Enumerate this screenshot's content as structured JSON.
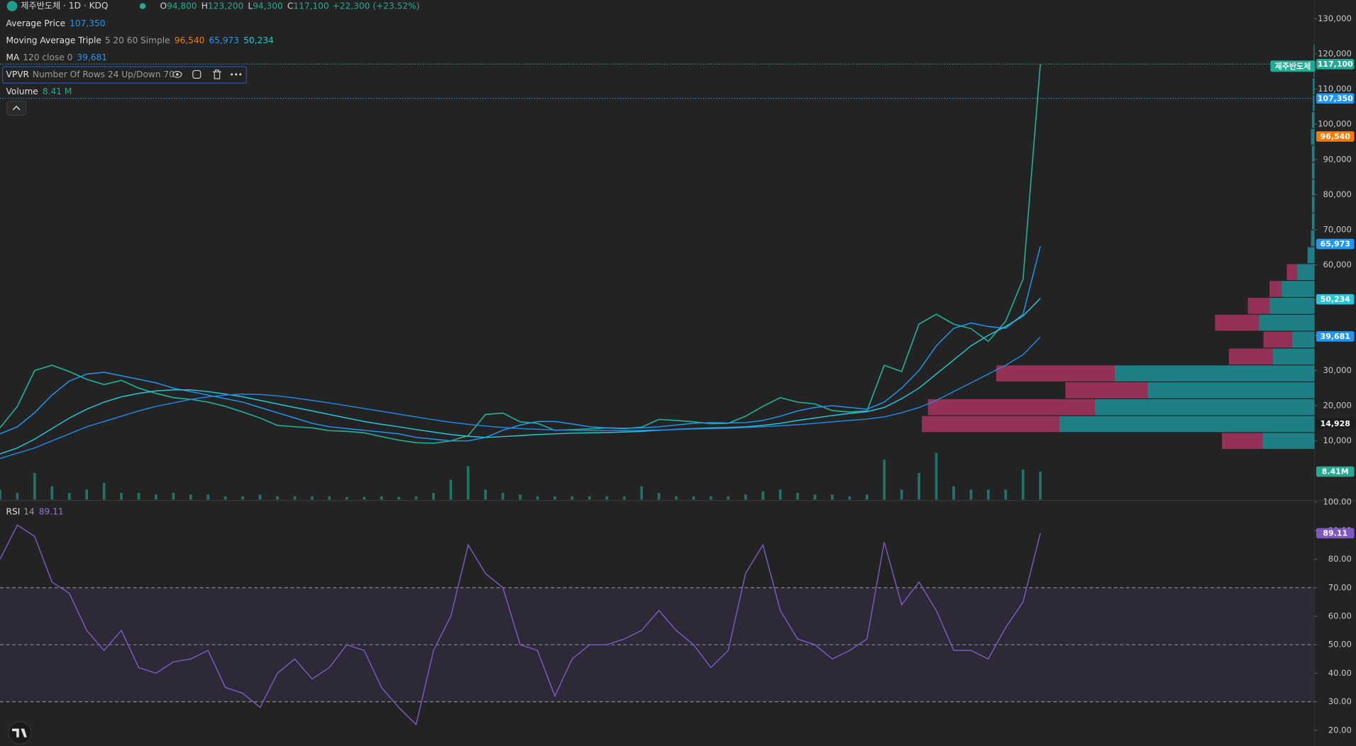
{
  "header": {
    "symbol": "제주반도체 · 1D · KDQ",
    "symbol_tag": "제주반도체",
    "ohlc": [
      {
        "key": "O",
        "value": "94,800"
      },
      {
        "key": "H",
        "value": "123,200"
      },
      {
        "key": "L",
        "value": "94,300"
      },
      {
        "key": "C",
        "value": "117,100"
      }
    ],
    "change": "+22,300 (+23.52%)"
  },
  "legend": [
    {
      "name": "Average Price",
      "values": [
        {
          "text": "107,350",
          "color": "#2196f3"
        }
      ]
    },
    {
      "name": "Moving Average Triple",
      "params": "5 20 60 Simple",
      "values": [
        {
          "text": "96,540",
          "color": "#f57c00"
        },
        {
          "text": "65,973",
          "color": "#2196f3"
        },
        {
          "text": "50,234",
          "color": "#26c6da"
        }
      ]
    },
    {
      "name": "MA",
      "params": "120 close 0",
      "values": [
        {
          "text": "39,681",
          "color": "#2196f3"
        }
      ]
    },
    {
      "name": "VPVR",
      "params": "Number Of Rows 24 Up/Down 70",
      "values": []
    },
    {
      "name": "Volume",
      "values": [
        {
          "text": "8.41 M",
          "color": "#22ab94"
        }
      ]
    }
  ],
  "rsi_legend": {
    "name": "RSI",
    "params": "14",
    "values": [
      {
        "text": "89.11",
        "color": "#9575cd"
      }
    ]
  },
  "chart_data": [
    {
      "type": "line",
      "ylim": [
        -6700,
        135300
      ],
      "yticks": [
        {
          "value": 10000,
          "label": "10,000"
        },
        {
          "value": 20000,
          "label": "20,000"
        },
        {
          "value": 30000,
          "label": "30,000"
        },
        {
          "value": 40000,
          "label": "40,000"
        },
        {
          "value": 50000,
          "label": "50,000"
        },
        {
          "value": 60000,
          "label": "60,000"
        },
        {
          "value": 70000,
          "label": "70,000"
        },
        {
          "value": 80000,
          "label": "80,000"
        },
        {
          "value": 90000,
          "label": "90,000"
        },
        {
          "value": 100000,
          "label": "100,000"
        },
        {
          "value": 110000,
          "label": "110,000"
        },
        {
          "value": 120000,
          "label": "120,000"
        },
        {
          "value": 130000,
          "label": "130,000"
        }
      ],
      "series": [
        {
          "color": "#22ab94",
          "values": [
            13700,
            19800,
            30000,
            31500,
            29700,
            27500,
            26000,
            27200,
            25000,
            23500,
            22300,
            21800,
            21000,
            19800,
            18200,
            16500,
            14400,
            14000,
            13700,
            12900,
            12700,
            12300,
            11200,
            10200,
            9500,
            9300,
            10000,
            11500,
            17500,
            17900,
            15400,
            15000,
            13000,
            13200,
            13400,
            13700,
            13500,
            13900,
            16100,
            15800,
            15400,
            14900,
            15000,
            17000,
            19800,
            22300,
            21000,
            20500,
            18600,
            18200,
            18500,
            31500,
            29700,
            43200,
            46000,
            43200,
            41900,
            38300,
            44000,
            56000,
            117100
          ]
        },
        {
          "color": "#2196f3",
          "values": [
            12000,
            14000,
            18000,
            23000,
            27000,
            29000,
            29500,
            28500,
            27500,
            26500,
            25000,
            24000,
            23000,
            22000,
            21000,
            19500,
            18000,
            16500,
            15000,
            14000,
            13500,
            13000,
            12500,
            12000,
            11000,
            10500,
            10000,
            10000,
            11000,
            13000,
            14500,
            15500,
            15500,
            14800,
            14000,
            13700,
            13600,
            13700,
            14000,
            14500,
            15000,
            15200,
            15100,
            15200,
            15800,
            17000,
            18500,
            19500,
            20000,
            19500,
            19000,
            21000,
            25000,
            30000,
            37000,
            42000,
            43500,
            42500,
            42000,
            46000,
            65300
          ]
        },
        {
          "color": "#26c6da",
          "values": [
            6300,
            8000,
            10500,
            13500,
            16500,
            19000,
            21000,
            22500,
            23500,
            24200,
            24500,
            24500,
            24000,
            23300,
            22500,
            21500,
            20500,
            19500,
            18500,
            17500,
            16500,
            15500,
            14700,
            14000,
            13200,
            12500,
            11800,
            11300,
            11000,
            11200,
            11500,
            11800,
            12000,
            12200,
            12300,
            12400,
            12500,
            12700,
            13000,
            13300,
            13500,
            13700,
            13800,
            14000,
            14400,
            15000,
            15800,
            16500,
            17200,
            17800,
            18300,
            19500,
            22000,
            25000,
            29000,
            33000,
            37000,
            40000,
            42500,
            45500,
            50500
          ]
        },
        {
          "color": "#1e88e5",
          "values": [
            5000,
            6500,
            8000,
            10000,
            12000,
            14000,
            15500,
            17000,
            18500,
            19800,
            20800,
            21800,
            22500,
            23000,
            23300,
            23200,
            22800,
            22200,
            21500,
            20800,
            20000,
            19200,
            18400,
            17600,
            16800,
            16000,
            15300,
            14700,
            14200,
            13800,
            13500,
            13300,
            13100,
            13000,
            12900,
            12900,
            12900,
            13000,
            13100,
            13200,
            13400,
            13500,
            13600,
            13800,
            14000,
            14300,
            14600,
            15000,
            15400,
            15800,
            16200,
            16800,
            18000,
            19500,
            21500,
            24000,
            26500,
            29000,
            31500,
            34500,
            39500
          ]
        }
      ],
      "markers": [
        {
          "label": "117,100",
          "value": 117100,
          "color": "#22ab94",
          "line": true
        },
        {
          "label": "107,350",
          "value": 107350,
          "color": "#2196f3",
          "line": true
        },
        {
          "label": "96,540",
          "value": 96540,
          "color": "#f57c00",
          "line": false
        },
        {
          "label": "65,973",
          "value": 65973,
          "color": "#2196f3",
          "line": false
        },
        {
          "label": "50,234",
          "value": 50234,
          "color": "#26c6da",
          "line": false
        },
        {
          "label": "39,681",
          "value": 39681,
          "color": "#2196f3",
          "line": false
        },
        {
          "label": "14,928",
          "value": 14928,
          "color": "#1c1c1c",
          "line": false
        }
      ]
    },
    {
      "type": "bar",
      "ylim": [
        0,
        150
      ],
      "color": "#1f8a7c",
      "values": [
        3,
        2,
        8,
        4,
        2,
        3,
        5,
        2,
        2,
        1.5,
        2,
        1.5,
        1.5,
        1,
        1,
        1.5,
        1,
        1,
        1,
        1,
        0.8,
        0.8,
        1,
        0.8,
        1,
        2,
        6,
        10,
        3,
        2,
        1.5,
        1,
        1,
        1,
        1,
        1,
        1,
        4,
        2,
        1,
        1,
        1,
        1,
        1.5,
        2.5,
        3,
        2,
        1.5,
        1.5,
        1,
        1.5,
        12,
        3,
        8,
        14,
        4,
        3,
        3,
        3,
        9,
        8.41
      ],
      "markers": [
        {
          "label": "8.41M",
          "value": 8.41,
          "color": "#22ab94",
          "line": false
        }
      ]
    },
    {
      "type": "volume_profile",
      "xlim": [
        0,
        1520
      ],
      "up_color": "#1f8f99",
      "down_color": "#a8345f",
      "bins": [
        7700,
        12500,
        17300,
        22100,
        26900,
        31700,
        36500,
        41300,
        46100,
        50900,
        55700,
        60500,
        65300,
        70100,
        74900,
        79700,
        84500,
        89300,
        94100,
        98900,
        103700,
        108500,
        113300,
        118100,
        122900
      ],
      "up": [
        60,
        295,
        254,
        193,
        231,
        48,
        26,
        64,
        52,
        38,
        20,
        8,
        4,
        3,
        3,
        3,
        3,
        3,
        4,
        3,
        2,
        2,
        1,
        1
      ],
      "down": [
        47,
        159,
        193,
        95,
        137,
        51,
        33,
        51,
        25,
        14,
        12,
        0,
        0,
        0,
        0,
        0,
        0,
        0,
        0,
        0,
        0,
        0,
        0,
        0
      ]
    },
    {
      "type": "line",
      "ylim": [
        14.5,
        100
      ],
      "color": "#7e57c2",
      "band_color": "#7e57c2",
      "bands": {
        "upper": 70,
        "middle": 50,
        "lower": 30
      },
      "yticks": [
        {
          "value": 20,
          "label": "20.00"
        },
        {
          "value": 30,
          "label": "30.00"
        },
        {
          "value": 40,
          "label": "40.00"
        },
        {
          "value": 50,
          "label": "50.00"
        },
        {
          "value": 60,
          "label": "60.00"
        },
        {
          "value": 70,
          "label": "70.00"
        },
        {
          "value": 80,
          "label": "80.00"
        },
        {
          "value": 90,
          "label": "90.00"
        },
        {
          "value": 100,
          "label": "100.00"
        }
      ],
      "values": [
        80,
        92,
        88,
        72,
        68,
        55,
        48,
        55,
        42,
        40,
        44,
        45,
        48,
        35,
        33,
        28,
        40,
        45,
        38,
        42,
        50,
        48,
        35,
        28,
        22,
        48,
        60,
        85,
        75,
        70,
        50,
        48,
        32,
        45,
        50,
        50,
        52,
        55,
        62,
        55,
        50,
        42,
        48,
        75,
        85,
        62,
        52,
        50,
        45,
        48,
        52,
        86,
        64,
        72,
        62,
        48,
        48,
        45,
        56,
        65,
        89.11
      ],
      "markers": [
        {
          "label": "89.11",
          "value": 89.11,
          "color": "#7e57c2",
          "line": false
        }
      ]
    }
  ]
}
